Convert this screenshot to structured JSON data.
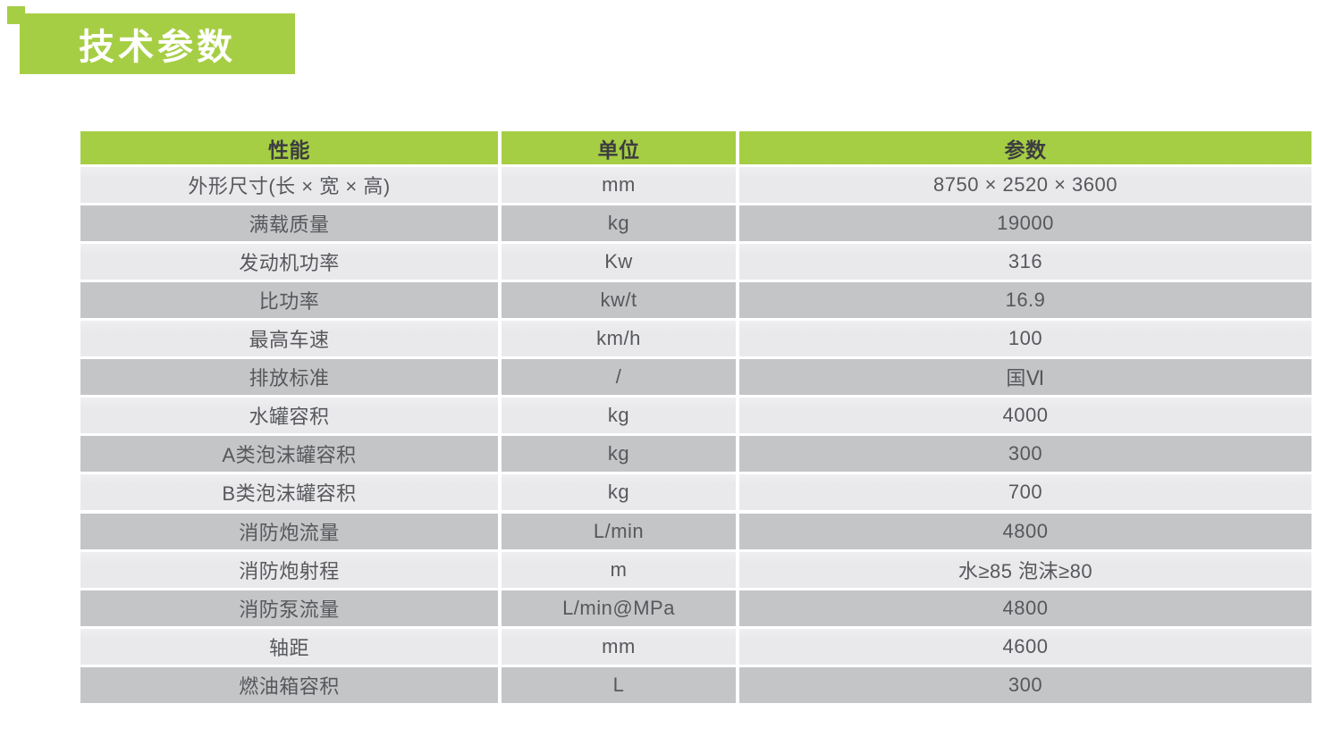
{
  "title": "技术参数",
  "colors": {
    "accent_green": "#a6ce44",
    "row_light": "#e9e9eb",
    "row_dark": "#c4c5c6",
    "header_text": "#3c3d40",
    "cell_text": "#57585c",
    "title_text": "#ffffff"
  },
  "table": {
    "headers": [
      "性能",
      "单位",
      "参数"
    ],
    "rows": [
      {
        "name": "外形尺寸(长 × 宽 × 高)",
        "unit": "mm",
        "value": "8750 × 2520 × 3600"
      },
      {
        "name": "满载质量",
        "unit": "kg",
        "value": "19000"
      },
      {
        "name": "发动机功率",
        "unit": "Kw",
        "value": "316"
      },
      {
        "name": "比功率",
        "unit": "kw/t",
        "value": "16.9"
      },
      {
        "name": "最高车速",
        "unit": "km/h",
        "value": "100"
      },
      {
        "name": "排放标准",
        "unit": "/",
        "value": "国Ⅵ"
      },
      {
        "name": "水罐容积",
        "unit": "kg",
        "value": "4000"
      },
      {
        "name": "A类泡沫罐容积",
        "unit": "kg",
        "value": "300"
      },
      {
        "name": "B类泡沫罐容积",
        "unit": "kg",
        "value": "700"
      },
      {
        "name": "消防炮流量",
        "unit": "L/min",
        "value": "4800",
        "section_break_before": true
      },
      {
        "name": "消防炮射程",
        "unit": "m",
        "value": "水≥85 泡沫≥80"
      },
      {
        "name": "消防泵流量",
        "unit": "L/min@MPa",
        "value": "4800"
      },
      {
        "name": "轴距",
        "unit": "mm",
        "value": "4600"
      },
      {
        "name": "燃油箱容积",
        "unit": "L",
        "value": "300"
      }
    ]
  }
}
